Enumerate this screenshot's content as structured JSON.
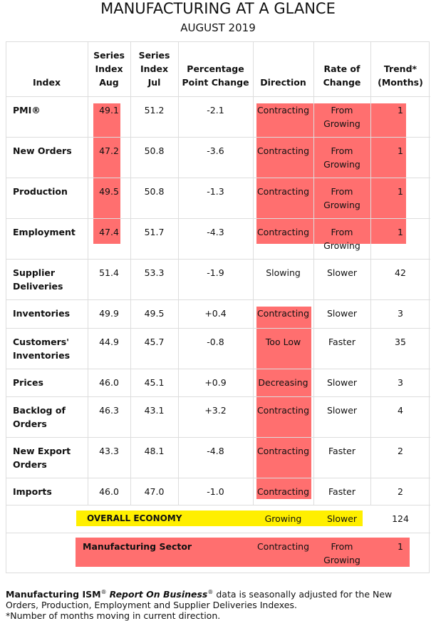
{
  "header": {
    "title": "MANUFACTURING AT A GLANCE",
    "subtitle": "AUGUST 2019"
  },
  "table": {
    "columns": [
      "Index",
      "Series\nIndex\nAug",
      "Series\nIndex\nJul",
      "Percentage\nPoint Change",
      "Direction",
      "Rate of\nChange",
      "Trend*\n(Months)"
    ],
    "rows": [
      [
        "PMI®",
        "49.1",
        "51.2",
        "-2.1",
        "Contracting",
        "From\nGrowing",
        "1"
      ],
      [
        "New Orders",
        "47.2",
        "50.8",
        "-3.6",
        "Contracting",
        "From\nGrowing",
        "1"
      ],
      [
        "Production",
        "49.5",
        "50.8",
        "-1.3",
        "Contracting",
        "From\nGrowing",
        "1"
      ],
      [
        "Employment",
        "47.4",
        "51.7",
        "-4.3",
        "Contracting",
        "From\nGrowing",
        "1"
      ],
      [
        "Supplier\nDeliveries",
        "51.4",
        "53.3",
        "-1.9",
        "Slowing",
        "Slower",
        "42"
      ],
      [
        "Inventories",
        "49.9",
        "49.5",
        "+0.4",
        "Contracting",
        "Slower",
        "3"
      ],
      [
        "Customers'\nInventories",
        "44.9",
        "45.7",
        "-0.8",
        "Too Low",
        "Faster",
        "35"
      ],
      [
        "Prices",
        "46.0",
        "45.1",
        "+0.9",
        "Decreasing",
        "Slower",
        "3"
      ],
      [
        "Backlog of\nOrders",
        "46.3",
        "43.1",
        "+3.2",
        "Contracting",
        "Slower",
        "4"
      ],
      [
        "New Export\nOrders",
        "43.3",
        "48.1",
        "-4.8",
        "Contracting",
        "Faster",
        "2"
      ],
      [
        "Imports",
        "46.0",
        "47.0",
        "-1.0",
        "Contracting",
        "Faster",
        "2"
      ]
    ],
    "summary_rows": [
      {
        "label": "OVERALL ECONOMY",
        "direction": "Growing",
        "rate_of_change": "Slower",
        "trend": "124"
      },
      {
        "label": "Manufacturing Sector",
        "direction": "Contracting",
        "rate_of_change": "From\nGrowing",
        "trend": "1"
      }
    ]
  },
  "footnotes": {
    "main": [
      "Manufacturing ISM",
      "®",
      "Report On Business",
      "®",
      "data is seasonally adjusted for the New Orders, Production, Employment and Supplier Deliveries Indexes."
    ],
    "trend_note": "*Number of months moving in current direction."
  }
}
